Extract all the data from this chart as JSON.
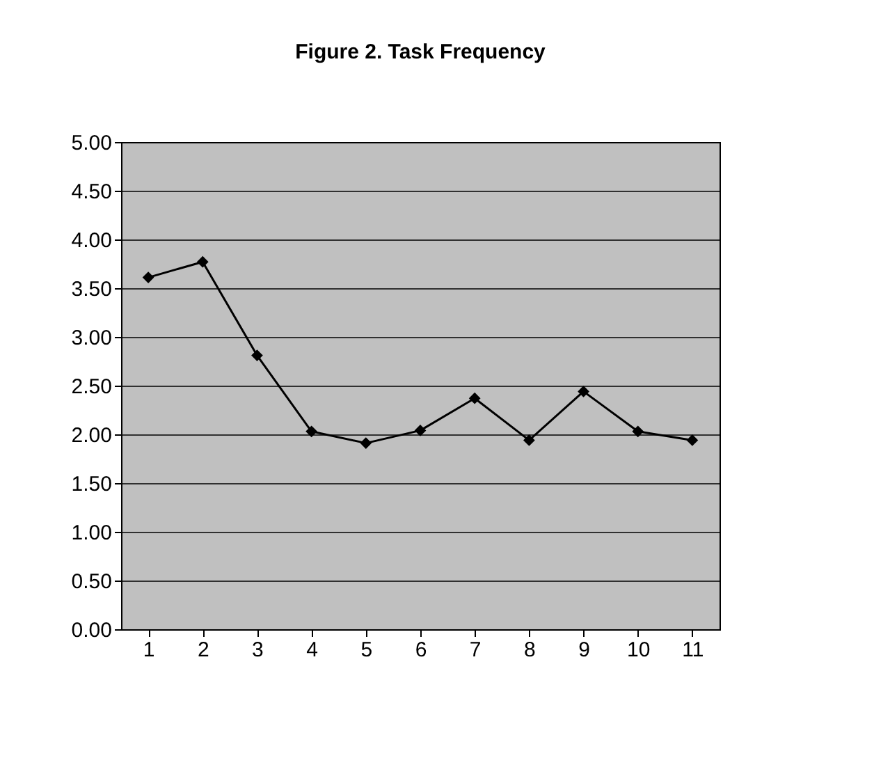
{
  "chart_data": {
    "type": "line",
    "title": "Figure 2. Task Frequency",
    "categories": [
      "1",
      "2",
      "3",
      "4",
      "5",
      "6",
      "7",
      "8",
      "9",
      "10",
      "11"
    ],
    "series": [
      {
        "color": "#000000",
        "values": [
          3.61,
          3.77,
          2.81,
          2.03,
          1.91,
          2.04,
          2.37,
          1.94,
          2.44,
          2.03,
          1.94
        ]
      }
    ],
    "ylim": [
      0,
      5
    ],
    "yticks": [
      {
        "value": 0,
        "label": "0.00"
      },
      {
        "value": 0.5,
        "label": "0.50"
      },
      {
        "value": 1,
        "label": "1.00"
      },
      {
        "value": 1.5,
        "label": "1.50"
      },
      {
        "value": 2,
        "label": "2.00"
      },
      {
        "value": 2.5,
        "label": "2.50"
      },
      {
        "value": 3,
        "label": "3.00"
      },
      {
        "value": 3.5,
        "label": "3.50"
      },
      {
        "value": 4,
        "label": "4.00"
      },
      {
        "value": 4.5,
        "label": "4.50"
      },
      {
        "value": 5,
        "label": "5.00"
      }
    ],
    "grid": "y",
    "marker": "diamond",
    "line_style": "solid"
  }
}
